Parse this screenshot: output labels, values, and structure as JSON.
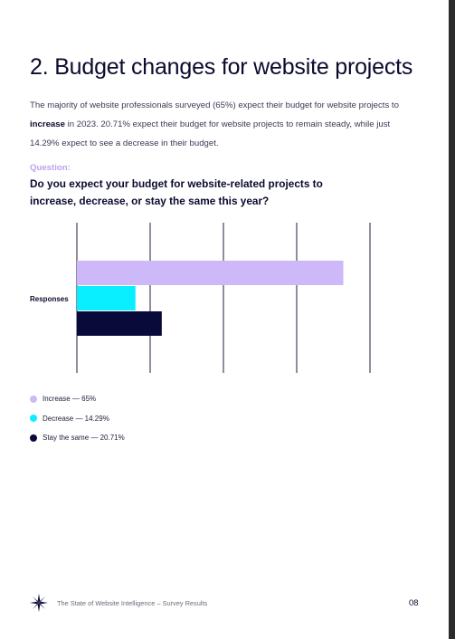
{
  "page": {
    "title": "2. Budget changes for website projects",
    "intro": {
      "part1": "The majority of website professionals surveyed (65%) expect their budget for website projects to ",
      "bold": "increase",
      "part2": " in 2023. 20.71% expect their budget for website projects to remain steady, while just 14.29% expect to see a decrease in their budget."
    },
    "question_label": "Question:",
    "question_text": "Do you expect your budget for website-related projects to increase, decrease, or stay the same this year?",
    "footer_text": "The State of Website Intelligence – Survey Results",
    "page_number": "08"
  },
  "colors": {
    "increase": "#cdb9f7",
    "decrease": "#0aefff",
    "stay": "#0a0a3a",
    "grid": "#1c1c3a",
    "accent_label": "#b9a2f0"
  },
  "chart_data": {
    "type": "bar",
    "orientation": "horizontal",
    "categories": [
      "Responses"
    ],
    "series": [
      {
        "name": "Increase",
        "values": [
          65
        ],
        "color": "#cdb9f7"
      },
      {
        "name": "Decrease",
        "values": [
          14.29
        ],
        "color": "#0aefff"
      },
      {
        "name": "Stay the same",
        "values": [
          20.71
        ],
        "color": "#0a0a3a"
      }
    ],
    "xlim": [
      0,
      71.5
    ],
    "grid": true,
    "legend_placement": "bottom-left",
    "legend": [
      "Increase — 65%",
      "Decrease — 14.29%",
      "Stay the same — 20.71%"
    ]
  }
}
